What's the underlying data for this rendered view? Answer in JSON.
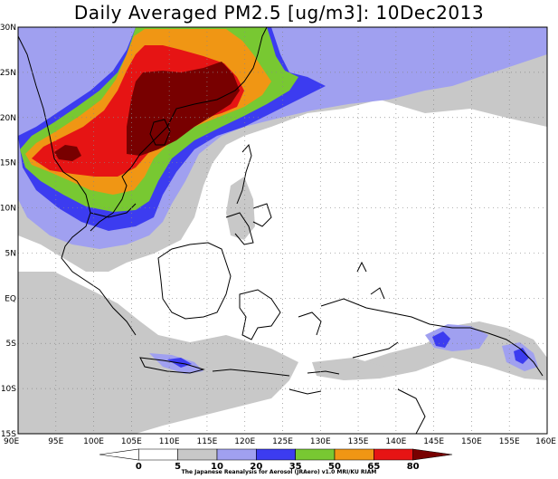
{
  "title": "Daily Averaged PM2.5 [ug/m3]: 10Dec2013",
  "map": {
    "lon_range": [
      90,
      160
    ],
    "lat_range": [
      -15,
      30
    ],
    "lat_ticks": [
      {
        "value": 30,
        "label": "30N"
      },
      {
        "value": 25,
        "label": "25N"
      },
      {
        "value": 20,
        "label": "20N"
      },
      {
        "value": 15,
        "label": "15N"
      },
      {
        "value": 10,
        "label": "10N"
      },
      {
        "value": 5,
        "label": "5N"
      },
      {
        "value": 0,
        "label": "EQ"
      },
      {
        "value": -5,
        "label": "5S"
      },
      {
        "value": -10,
        "label": "10S"
      },
      {
        "value": -15,
        "label": "15S"
      }
    ],
    "lon_ticks": [
      {
        "value": 90,
        "label": "90E"
      },
      {
        "value": 95,
        "label": "95E"
      },
      {
        "value": 100,
        "label": "100E"
      },
      {
        "value": 105,
        "label": "105E"
      },
      {
        "value": 110,
        "label": "110E"
      },
      {
        "value": 115,
        "label": "115E"
      },
      {
        "value": 120,
        "label": "120E"
      },
      {
        "value": 125,
        "label": "125E"
      },
      {
        "value": 130,
        "label": "130E"
      },
      {
        "value": 135,
        "label": "135E"
      },
      {
        "value": 140,
        "label": "140E"
      },
      {
        "value": 145,
        "label": "145E"
      },
      {
        "value": 150,
        "label": "150E"
      },
      {
        "value": 155,
        "label": "155E"
      },
      {
        "value": 160,
        "label": "160E"
      }
    ],
    "grid": true
  },
  "colorbar": {
    "levels": [
      "0",
      "5",
      "10",
      "20",
      "35",
      "50",
      "65",
      "80"
    ],
    "colors": [
      "#ffffff",
      "#ffffff",
      "#c8c8c8",
      "#a0a0f0",
      "#3c3cf0",
      "#78c832",
      "#f09614",
      "#e61414",
      "#780000"
    ]
  },
  "credit": "The Japanese Reanalysis for Aerosol (JRAero) v1.0 MRI/KU RIAM",
  "colors": {
    "gray": "#c8c8c8",
    "lightblue": "#a0a0f0",
    "blue": "#3c3cf0",
    "green": "#78c832",
    "orange": "#f09614",
    "red": "#e61414",
    "darkred": "#780000"
  }
}
